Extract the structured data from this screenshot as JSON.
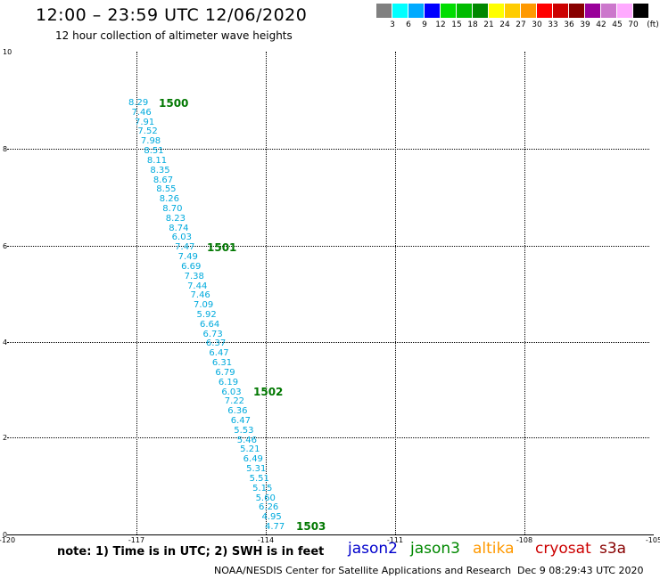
{
  "header": {
    "title": "12:00 – 23:59 UTC 12/06/2020",
    "subtitle": "12 hour collection of altimeter wave heights"
  },
  "legend": {
    "colors": [
      "#808080",
      "#00ffff",
      "#00aaff",
      "#0000ff",
      "#00dd00",
      "#00bb00",
      "#008800",
      "#ffff00",
      "#ffcc00",
      "#ff9900",
      "#ff0000",
      "#cc0000",
      "#880000",
      "#990099",
      "#cc77cc",
      "#ffaaff",
      "#000000"
    ],
    "labels": [
      "3",
      "6",
      "9",
      "12",
      "15",
      "18",
      "21",
      "24",
      "27",
      "30",
      "33",
      "36",
      "39",
      "42",
      "45",
      "70"
    ],
    "unit": "(ft)"
  },
  "map": {
    "x_ticks": [
      "-120",
      "-117",
      "-114",
      "-111",
      "-108",
      "-105"
    ],
    "y_ticks": [
      "0",
      "2",
      "4",
      "6",
      "8",
      "10"
    ],
    "swh_values": [
      "8.29",
      "7.46",
      "7.91",
      "7.52",
      "7.98",
      "8.51",
      "8.11",
      "8.35",
      "8.67",
      "8.55",
      "8.26",
      "8.70",
      "8.23",
      "8.74",
      "6.03",
      "7.47",
      "7.49",
      "6.69",
      "7.38",
      "7.44",
      "7.46",
      "7.09",
      "5.92",
      "6.64",
      "6.73",
      "6.37",
      "6.47",
      "6.31",
      "6.79",
      "6.19",
      "6.03",
      "7.22",
      "6.36",
      "6.47",
      "5.53",
      "5.46",
      "5.21",
      "6.49",
      "5.31",
      "5.51",
      "5.15",
      "5.60",
      "6.26",
      "4.95",
      "4.77"
    ],
    "pass_labels": [
      "1500",
      "1501",
      "1502",
      "1503"
    ],
    "swh_color": "#00aadd",
    "pass_color": "#007700"
  },
  "footer": {
    "note": "note:  1) Time is in UTC;  2) SWH is in feet",
    "satellites": [
      {
        "name": "jason2",
        "color": "#0000cc"
      },
      {
        "name": "jason3",
        "color": "#008800"
      },
      {
        "name": "altika",
        "color": "#ff9900"
      },
      {
        "name": "cryosat",
        "color": "#cc0000"
      },
      {
        "name": "s3a",
        "color": "#880000"
      }
    ],
    "credit": "NOAA/NESDIS Center for Satellite Applications and Research",
    "timestamp": "Dec  9 08:29:43 UTC 2020"
  }
}
